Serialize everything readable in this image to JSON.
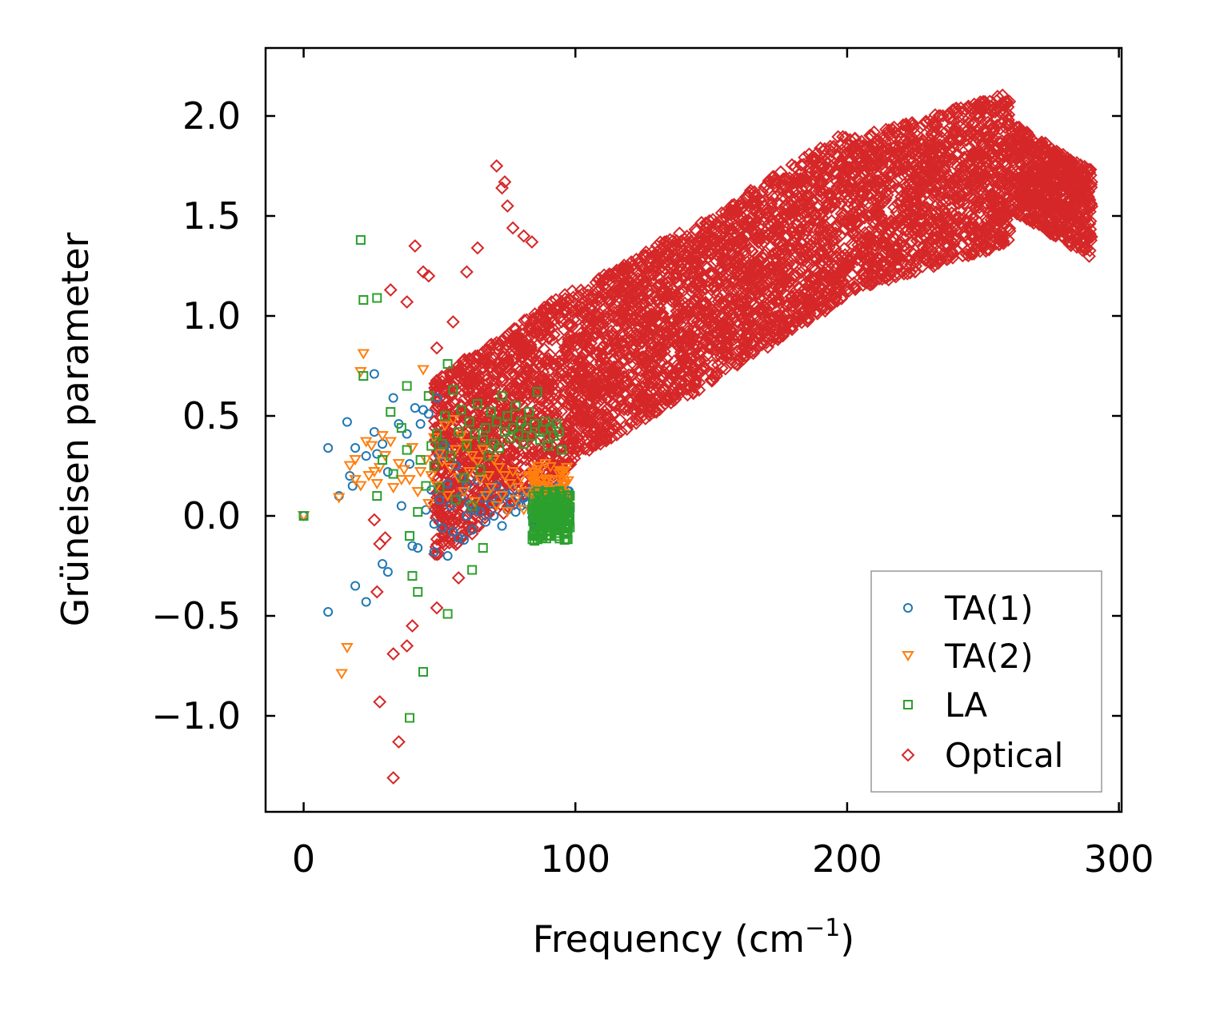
{
  "chart_data": {
    "type": "scatter",
    "title": "",
    "xlabel": "Frequency (cm",
    "xlabel_sup": "−1",
    "xlabel_close": ")",
    "ylabel": "Grüneisen parameter",
    "xlim": [
      -14,
      301
    ],
    "ylim": [
      -1.48,
      2.34
    ],
    "xticks": [
      0,
      100,
      200,
      300
    ],
    "xtick_labels": [
      "0",
      "100",
      "200",
      "300"
    ],
    "yticks": [
      -1.0,
      -0.5,
      0.0,
      0.5,
      1.0,
      1.5,
      2.0
    ],
    "ytick_labels": [
      "−1.0",
      "−0.5",
      "0.0",
      "0.5",
      "1.0",
      "1.5",
      "2.0"
    ],
    "grid": false,
    "legend_position": "lower-right",
    "series": [
      {
        "name": "TA(1)",
        "marker": "circle",
        "color": "#1f77b4",
        "points": [
          [
            0,
            0
          ],
          [
            9,
            0.34
          ],
          [
            9,
            -0.48
          ],
          [
            13,
            0.1
          ],
          [
            16,
            0.47
          ],
          [
            17,
            0.2
          ],
          [
            18,
            0.15
          ],
          [
            19,
            0.34
          ],
          [
            19,
            -0.35
          ],
          [
            23,
            0.3
          ],
          [
            23,
            -0.43
          ],
          [
            26,
            0.42
          ],
          [
            26,
            0.71
          ],
          [
            27,
            0.31
          ],
          [
            29,
            0.36
          ],
          [
            29,
            -0.24
          ],
          [
            31,
            -0.28
          ],
          [
            31,
            0.22
          ],
          [
            33,
            0.59
          ],
          [
            35,
            0.46
          ],
          [
            36,
            0.05
          ],
          [
            38,
            0.41
          ],
          [
            39,
            0.26
          ],
          [
            40,
            -0.15
          ],
          [
            41,
            0.54
          ],
          [
            42,
            -0.16
          ],
          [
            43,
            0.46
          ],
          [
            44,
            0.53
          ],
          [
            45,
            0.03
          ],
          [
            46,
            0.51
          ],
          [
            47,
            0.13
          ],
          [
            48,
            -0.18
          ],
          [
            48,
            -0.04
          ],
          [
            49,
            0.59
          ],
          [
            50,
            0.3
          ],
          [
            50,
            0.08
          ],
          [
            51,
            -0.06
          ],
          [
            52,
            0.35
          ],
          [
            53,
            -0.2
          ],
          [
            53,
            0.16
          ],
          [
            54,
            0.05
          ],
          [
            55,
            -0.08
          ],
          [
            56,
            0.25
          ],
          [
            57,
            -0.11
          ],
          [
            58,
            0.1
          ],
          [
            58,
            0.19
          ],
          [
            59,
            -0.12
          ],
          [
            60,
            0.0
          ],
          [
            60,
            0.15
          ],
          [
            61,
            0.06
          ],
          [
            62,
            -0.07
          ],
          [
            63,
            0.03
          ],
          [
            64,
            0.18
          ],
          [
            65,
            0.02
          ],
          [
            66,
            0.09
          ],
          [
            67,
            -0.03
          ],
          [
            68,
            0.12
          ],
          [
            69,
            0.06
          ],
          [
            70,
            0.0
          ],
          [
            71,
            0.15
          ],
          [
            72,
            0.08
          ],
          [
            73,
            -0.05
          ],
          [
            74,
            0.11
          ],
          [
            75,
            0.03
          ],
          [
            76,
            0.07
          ],
          [
            77,
            0.13
          ],
          [
            78,
            0.02
          ],
          [
            79,
            0.1
          ],
          [
            80,
            0.05
          ],
          [
            81,
            0.09
          ],
          [
            82,
            0.06
          ],
          [
            83,
            0.11
          ],
          [
            84,
            0.04
          ],
          [
            85,
            0.08
          ],
          [
            86,
            0.03
          ],
          [
            87,
            0.1
          ],
          [
            88,
            0.06
          ],
          [
            89,
            0.02
          ],
          [
            90,
            0.07
          ],
          [
            91,
            0.04
          ],
          [
            92,
            0.09
          ],
          [
            93,
            0.05
          ],
          [
            94,
            0.01
          ],
          [
            95,
            0.06
          ],
          [
            96,
            -0.02
          ]
        ]
      },
      {
        "name": "TA(2)",
        "marker": "triangle_down",
        "color": "#ff7f0e",
        "points": [
          [
            0,
            0
          ],
          [
            13,
            0.09
          ],
          [
            14,
            -0.79
          ],
          [
            16,
            -0.66
          ],
          [
            17,
            0.25
          ],
          [
            19,
            0.28
          ],
          [
            19,
            0.18
          ],
          [
            21,
            0.15
          ],
          [
            23,
            0.37
          ],
          [
            24,
            0.2
          ],
          [
            25,
            0.35
          ],
          [
            26,
            0.22
          ],
          [
            27,
            0.16
          ],
          [
            28,
            0.24
          ],
          [
            29,
            0.4
          ],
          [
            30,
            0.3
          ],
          [
            32,
            0.37
          ],
          [
            33,
            0.14
          ],
          [
            35,
            0.26
          ],
          [
            36,
            0.18
          ],
          [
            37,
            0.23
          ],
          [
            39,
            0.18
          ],
          [
            40,
            0.34
          ],
          [
            42,
            0.12
          ],
          [
            43,
            0.22
          ],
          [
            44,
            0.73
          ],
          [
            45,
            0.28
          ],
          [
            46,
            0.06
          ],
          [
            47,
            0.2
          ],
          [
            48,
            0.39
          ],
          [
            49,
            0.15
          ],
          [
            50,
            0.31
          ],
          [
            51,
            0.27
          ],
          [
            52,
            0.45
          ],
          [
            53,
            0.1
          ],
          [
            54,
            0.24
          ],
          [
            55,
            0.48
          ],
          [
            56,
            0.33
          ],
          [
            57,
            0.19
          ],
          [
            58,
            0.4
          ],
          [
            59,
            0.12
          ],
          [
            60,
            0.36
          ],
          [
            61,
            0.22
          ],
          [
            62,
            0.3
          ],
          [
            63,
            0.07
          ],
          [
            64,
            0.27
          ],
          [
            65,
            0.18
          ],
          [
            66,
            0.33
          ],
          [
            67,
            0.1
          ],
          [
            68,
            0.2
          ],
          [
            69,
            0.14
          ],
          [
            70,
            0.28
          ],
          [
            71,
            0.05
          ],
          [
            72,
            0.24
          ],
          [
            73,
            0.1
          ],
          [
            74,
            0.2
          ],
          [
            75,
            0.02
          ],
          [
            76,
            0.16
          ],
          [
            77,
            0.22
          ],
          [
            78,
            0.08
          ],
          [
            79,
            0.14
          ],
          [
            80,
            0.19
          ],
          [
            81,
            0.03
          ],
          [
            82,
            0.12
          ],
          [
            83,
            0.2
          ],
          [
            84,
            0.09
          ],
          [
            85,
            0.15
          ],
          [
            86,
            0.23
          ],
          [
            87,
            0.06
          ],
          [
            88,
            0.12
          ],
          [
            89,
            0.26
          ],
          [
            90,
            0.08
          ],
          [
            91,
            0.18
          ],
          [
            92,
            0.04
          ],
          [
            93,
            0.13
          ],
          [
            94,
            0.21
          ],
          [
            95,
            0.02
          ],
          [
            96,
            0.1
          ],
          [
            97,
            0.05
          ],
          [
            22,
            0.81
          ],
          [
            21,
            0.72
          ]
        ]
      },
      {
        "name": "LA",
        "marker": "square",
        "color": "#2ca02c",
        "points": [
          [
            0,
            0
          ],
          [
            21,
            1.38
          ],
          [
            22,
            0.7
          ],
          [
            22,
            1.08
          ],
          [
            27,
            1.09
          ],
          [
            27,
            0.1
          ],
          [
            29,
            0.28
          ],
          [
            32,
            0.52
          ],
          [
            33,
            0.21
          ],
          [
            36,
            0.44
          ],
          [
            38,
            0.65
          ],
          [
            38,
            0.33
          ],
          [
            39,
            -1.01
          ],
          [
            39,
            -0.1
          ],
          [
            40,
            -0.3
          ],
          [
            42,
            -0.38
          ],
          [
            42,
            0.02
          ],
          [
            43,
            0.28
          ],
          [
            44,
            -0.78
          ],
          [
            45,
            0.15
          ],
          [
            46,
            0.6
          ],
          [
            47,
            0.35
          ],
          [
            48,
            0.25
          ],
          [
            49,
            0.41
          ],
          [
            50,
            0.14
          ],
          [
            51,
            0.36
          ],
          [
            52,
            0.5
          ],
          [
            53,
            0.76
          ],
          [
            53,
            -0.49
          ],
          [
            54,
            0.3
          ],
          [
            55,
            0.63
          ],
          [
            56,
            0.08
          ],
          [
            57,
            0.42
          ],
          [
            58,
            0.53
          ],
          [
            59,
            0.19
          ],
          [
            60,
            0.35
          ],
          [
            61,
            0.47
          ],
          [
            62,
            0.05
          ],
          [
            62,
            -0.27
          ],
          [
            63,
            0.41
          ],
          [
            64,
            0.56
          ],
          [
            65,
            0.23
          ],
          [
            66,
            0.38
          ],
          [
            66,
            -0.16
          ],
          [
            67,
            0.44
          ],
          [
            68,
            0.3
          ],
          [
            69,
            0.52
          ],
          [
            70,
            0.36
          ],
          [
            71,
            0.47
          ],
          [
            72,
            0.34
          ],
          [
            73,
            0.6
          ],
          [
            74,
            0.42
          ],
          [
            75,
            0.5
          ],
          [
            76,
            0.39
          ],
          [
            77,
            0.44
          ],
          [
            78,
            0.55
          ],
          [
            79,
            0.41
          ],
          [
            80,
            0.47
          ],
          [
            81,
            0.36
          ],
          [
            82,
            0.44
          ],
          [
            83,
            0.52
          ],
          [
            84,
            0.4
          ],
          [
            85,
            0.46
          ],
          [
            86,
            0.62
          ],
          [
            87,
            0.38
          ],
          [
            88,
            0.43
          ],
          [
            89,
            0.47
          ],
          [
            90,
            0.35
          ],
          [
            91,
            0.44
          ],
          [
            92,
            0.4
          ],
          [
            93,
            0.46
          ],
          [
            94,
            0.42
          ],
          [
            95,
            0.1
          ],
          [
            95,
            0.33
          ],
          [
            96,
            0.02
          ],
          [
            96,
            -0.05
          ],
          [
            96,
            -0.12
          ],
          [
            97,
            0.06
          ],
          [
            97,
            -0.08
          ],
          [
            98,
            0.04
          ],
          [
            98,
            0.1
          ],
          [
            97,
            0.0
          ]
        ]
      },
      {
        "name": "Optical",
        "marker": "diamond",
        "color": "#d62728",
        "outliers": [
          [
            26,
            -0.02
          ],
          [
            28,
            -0.14
          ],
          [
            27,
            -0.38
          ],
          [
            28,
            -0.93
          ],
          [
            30,
            -0.11
          ],
          [
            32,
            1.13
          ],
          [
            33,
            -0.69
          ],
          [
            33,
            -1.31
          ],
          [
            35,
            -1.13
          ],
          [
            38,
            1.07
          ],
          [
            38,
            -0.65
          ],
          [
            40,
            -0.55
          ],
          [
            41,
            1.35
          ],
          [
            44,
            1.22
          ],
          [
            46,
            1.2
          ],
          [
            49,
            0.84
          ],
          [
            49,
            -0.46
          ],
          [
            55,
            0.97
          ],
          [
            57,
            -0.31
          ],
          [
            60,
            1.22
          ],
          [
            64,
            1.34
          ],
          [
            71,
            1.75
          ],
          [
            73,
            1.64
          ],
          [
            74,
            1.67
          ],
          [
            75,
            1.55
          ],
          [
            77,
            1.44
          ],
          [
            81,
            1.4
          ],
          [
            84,
            1.37
          ]
        ]
      }
    ]
  },
  "legend": {
    "items": [
      {
        "label": "TA(1)",
        "color": "#1f77b4"
      },
      {
        "label": "TA(2)",
        "color": "#ff7f0e"
      },
      {
        "label": "LA",
        "color": "#2ca02c"
      },
      {
        "label": "Optical",
        "color": "#d62728"
      }
    ]
  }
}
